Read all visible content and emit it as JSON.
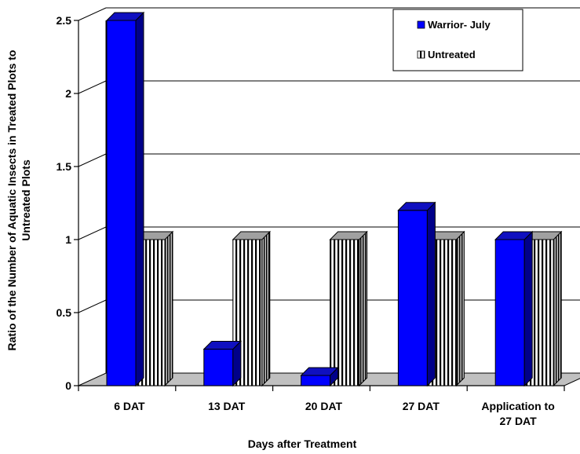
{
  "chart_data": {
    "type": "bar",
    "title": "",
    "xlabel": "Days after Treatment",
    "ylabel_lines": [
      "Ratio of the Number of Aquatic Insects in Treated Plots to",
      "Untreated Plots"
    ],
    "ylim": [
      0,
      2.5
    ],
    "yticks": [
      0,
      0.5,
      1,
      1.5,
      2,
      2.5
    ],
    "ytick_labels": [
      "0",
      "0.5",
      "1",
      "1.5",
      "2",
      "2.5"
    ],
    "categories": [
      [
        "6 DAT"
      ],
      [
        "13 DAT"
      ],
      [
        "20 DAT"
      ],
      [
        "27 DAT"
      ],
      [
        "Application to",
        "27 DAT"
      ]
    ],
    "series": [
      {
        "name": "Warrior- July",
        "values": [
          2.5,
          0.25,
          0.07,
          1.2,
          1.0
        ],
        "color": "#0000ff",
        "pattern": "solid"
      },
      {
        "name": "Untreated",
        "values": [
          1.0,
          1.0,
          1.0,
          1.0,
          1.0
        ],
        "color": "#ffffff",
        "pattern": "vertical-stripes"
      }
    ],
    "grid": true,
    "legend_position": "top-right",
    "style": "3d-bar"
  }
}
